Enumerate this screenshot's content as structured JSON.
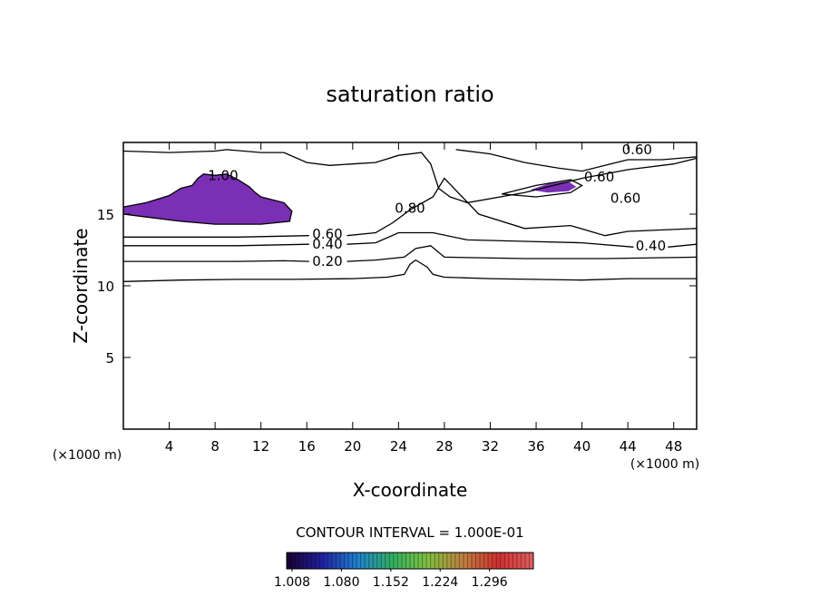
{
  "chart_data": {
    "type": "contour",
    "title": "saturation ratio",
    "x_label": "X-coordinate",
    "y_label": "Z-coordinate",
    "x_unit": "(×1000 m)",
    "y_unit": "(×1000 m)",
    "xlim": [
      0,
      50
    ],
    "ylim": [
      0,
      20
    ],
    "xticks": [
      4,
      8,
      12,
      16,
      20,
      24,
      28,
      32,
      36,
      40,
      44,
      48
    ],
    "yticks": [
      5,
      10,
      15
    ],
    "line_color": "#000000",
    "contours": [
      {
        "x": [
          0,
          5,
          10,
          15,
          20,
          23,
          24.5,
          25,
          25.5,
          26.5,
          27,
          28,
          32,
          40,
          44,
          50
        ],
        "y": [
          10.3,
          10.4,
          10.45,
          10.45,
          10.5,
          10.6,
          10.8,
          11.5,
          11.8,
          11.3,
          10.8,
          10.6,
          10.5,
          10.4,
          10.5,
          10.5
        ]
      },
      {
        "x": [
          0,
          10,
          14,
          16.2,
          null,
          19.5,
          22,
          24.5,
          25.5,
          26.8,
          28,
          35,
          42,
          50
        ],
        "y": [
          11.7,
          11.7,
          11.75,
          11.7,
          null,
          11.7,
          11.8,
          12.0,
          12.6,
          12.8,
          12.0,
          11.9,
          11.9,
          12.0
        ]
      },
      {
        "x": [
          0,
          10,
          16.2,
          null,
          19.5,
          22,
          24,
          27,
          30,
          35,
          40,
          44.5,
          null,
          47.5,
          50
        ],
        "y": [
          12.8,
          12.8,
          12.9,
          null,
          12.9,
          13.0,
          13.7,
          13.7,
          13.2,
          13.1,
          13.0,
          12.7,
          null,
          12.7,
          12.9
        ]
      },
      {
        "x": [
          0,
          10,
          16.2,
          null,
          19.5,
          22,
          23.5,
          25,
          27,
          28,
          31,
          35,
          39,
          42,
          44,
          50
        ],
        "y": [
          13.4,
          13.4,
          13.5,
          null,
          13.5,
          13.7,
          14.4,
          15.3,
          16.2,
          17.5,
          15.0,
          14.0,
          14.2,
          13.5,
          13.8,
          14.0
        ]
      },
      {
        "x": [
          0,
          4,
          8,
          9,
          12,
          14,
          16,
          18,
          20,
          22,
          24,
          26,
          26.8,
          27.5,
          28.5,
          30,
          35,
          40,
          44,
          48,
          50
        ],
        "y": [
          19.4,
          19.3,
          19.4,
          19.5,
          19.3,
          19.3,
          18.6,
          18.4,
          18.5,
          18.6,
          19.1,
          19.3,
          18.5,
          16.8,
          16.2,
          15.8,
          16.5,
          17.5,
          18.1,
          18.5,
          18.9
        ]
      },
      {
        "x": [
          29,
          32,
          35,
          38,
          40,
          42,
          44,
          47,
          50
        ],
        "y": [
          19.5,
          19.2,
          18.6,
          18.2,
          18.0,
          18.4,
          18.8,
          18.8,
          19.0
        ]
      },
      {
        "x": [
          0,
          2,
          4,
          5,
          6,
          6.5,
          7,
          8,
          9,
          10,
          11,
          11.5,
          12,
          14,
          14.7,
          14.5,
          12,
          8,
          5,
          2,
          0
        ],
        "y": [
          15.5,
          15.8,
          16.3,
          16.8,
          17.0,
          17.5,
          17.8,
          17.7,
          17.8,
          17.4,
          16.9,
          16.5,
          16.2,
          15.8,
          15.2,
          14.5,
          14.3,
          14.3,
          14.5,
          14.8,
          15.0
        ]
      },
      {
        "x": [
          33,
          36,
          39,
          40,
          39,
          36,
          33
        ],
        "y": [
          16.4,
          17.0,
          17.4,
          17.0,
          16.5,
          16.2,
          16.4
        ]
      }
    ],
    "fills": [
      {
        "color": "#7a2fb5",
        "x": [
          0,
          2,
          4,
          5,
          6,
          6.5,
          7,
          8,
          9,
          10,
          11,
          11.5,
          12,
          14,
          14.7,
          14.5,
          12,
          8,
          5,
          2,
          0
        ],
        "y": [
          15.5,
          15.8,
          16.3,
          16.8,
          17.0,
          17.5,
          17.8,
          17.7,
          17.8,
          17.4,
          16.9,
          16.5,
          16.2,
          15.8,
          15.2,
          14.5,
          14.3,
          14.3,
          14.5,
          14.8,
          15.0
        ]
      },
      {
        "color": "#7a2fb5",
        "x": [
          35.5,
          37,
          38.8,
          39.5,
          38.8,
          37,
          35.5
        ],
        "y": [
          16.7,
          17.1,
          17.3,
          16.9,
          16.6,
          16.5,
          16.7
        ]
      }
    ],
    "contour_labels": [
      {
        "x": 8.7,
        "y": 17.7,
        "value": 1,
        "label": "1.00"
      },
      {
        "x": 17.8,
        "y": 13.6,
        "value": 0.6,
        "label": "0.60"
      },
      {
        "x": 17.8,
        "y": 12.9,
        "value": 0.4,
        "label": "0.40"
      },
      {
        "x": 17.8,
        "y": 11.7,
        "value": 0.2,
        "label": "0.20"
      },
      {
        "x": 25,
        "y": 15.4,
        "value": 0.8,
        "label": "0.80"
      },
      {
        "x": 44.8,
        "y": 19.5,
        "value": 0.6,
        "label": "0.60"
      },
      {
        "x": 41.5,
        "y": 17.6,
        "value": 0.6,
        "label": "0.60"
      },
      {
        "x": 43.8,
        "y": 16.1,
        "value": 0.6,
        "label": "0.60"
      },
      {
        "x": 46,
        "y": 12.8,
        "value": 0.4,
        "label": "0.40"
      }
    ],
    "contour_interval": "CONTOUR INTERVAL = 1.000E-01",
    "colorbar": {
      "clim": [
        1.0,
        1.36
      ],
      "colors": [
        "#1a0030",
        "#2020a0",
        "#2080d0",
        "#30b060",
        "#80c040",
        "#c08040",
        "#d03030",
        "#e06060"
      ],
      "ticks": [
        1.008,
        {
          "value": 1.08,
          "label": "1.080"
        },
        1.152,
        1.224,
        1.296
      ]
    }
  }
}
